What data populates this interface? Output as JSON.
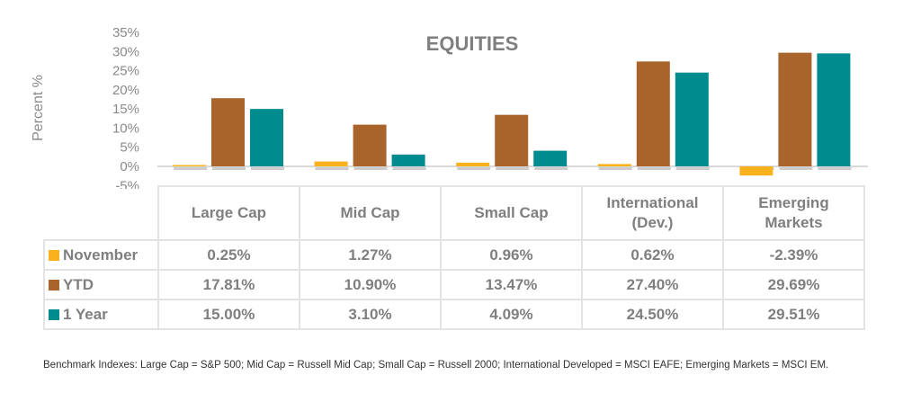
{
  "chart_data": {
    "type": "bar",
    "title": "EQUITIES",
    "ylabel": "Percent %",
    "xlabel": "",
    "ylim": [
      -5,
      35
    ],
    "yticks": [
      "35%",
      "30%",
      "25%",
      "20%",
      "15%",
      "10%",
      "5%",
      "0%",
      "-5%"
    ],
    "categories": [
      "Large Cap",
      "Mid Cap",
      "Small Cap",
      "International (Dev.)",
      "Emerging Markets"
    ],
    "category_lines": [
      [
        "Large Cap"
      ],
      [
        "Mid Cap"
      ],
      [
        "Small Cap"
      ],
      [
        "International",
        "(Dev.)"
      ],
      [
        "Emerging",
        "Markets"
      ]
    ],
    "legend_placement": "data-table",
    "series": [
      {
        "name": "November",
        "color": "#F9B21E",
        "values": [
          0.25,
          1.27,
          0.96,
          0.62,
          -2.39
        ],
        "labels": [
          "0.25%",
          "1.27%",
          "0.96%",
          "0.62%",
          "-2.39%"
        ]
      },
      {
        "name": "YTD",
        "color": "#A8642A",
        "values": [
          17.81,
          10.9,
          13.47,
          27.4,
          29.69
        ],
        "labels": [
          "17.81%",
          "10.90%",
          "13.47%",
          "27.40%",
          "29.69%"
        ]
      },
      {
        "name": "1 Year",
        "color": "#008B8E",
        "values": [
          15.0,
          3.1,
          4.09,
          24.5,
          29.51
        ],
        "labels": [
          "15.00%",
          "3.10%",
          "4.09%",
          "24.50%",
          "29.51%"
        ]
      }
    ]
  },
  "footnote": "Benchmark Indexes: Large Cap = S&P 500; Mid Cap = Russell Mid Cap; Small Cap = Russell 2000; International Developed = MSCI EAFE; Emerging Markets = MSCI EM."
}
